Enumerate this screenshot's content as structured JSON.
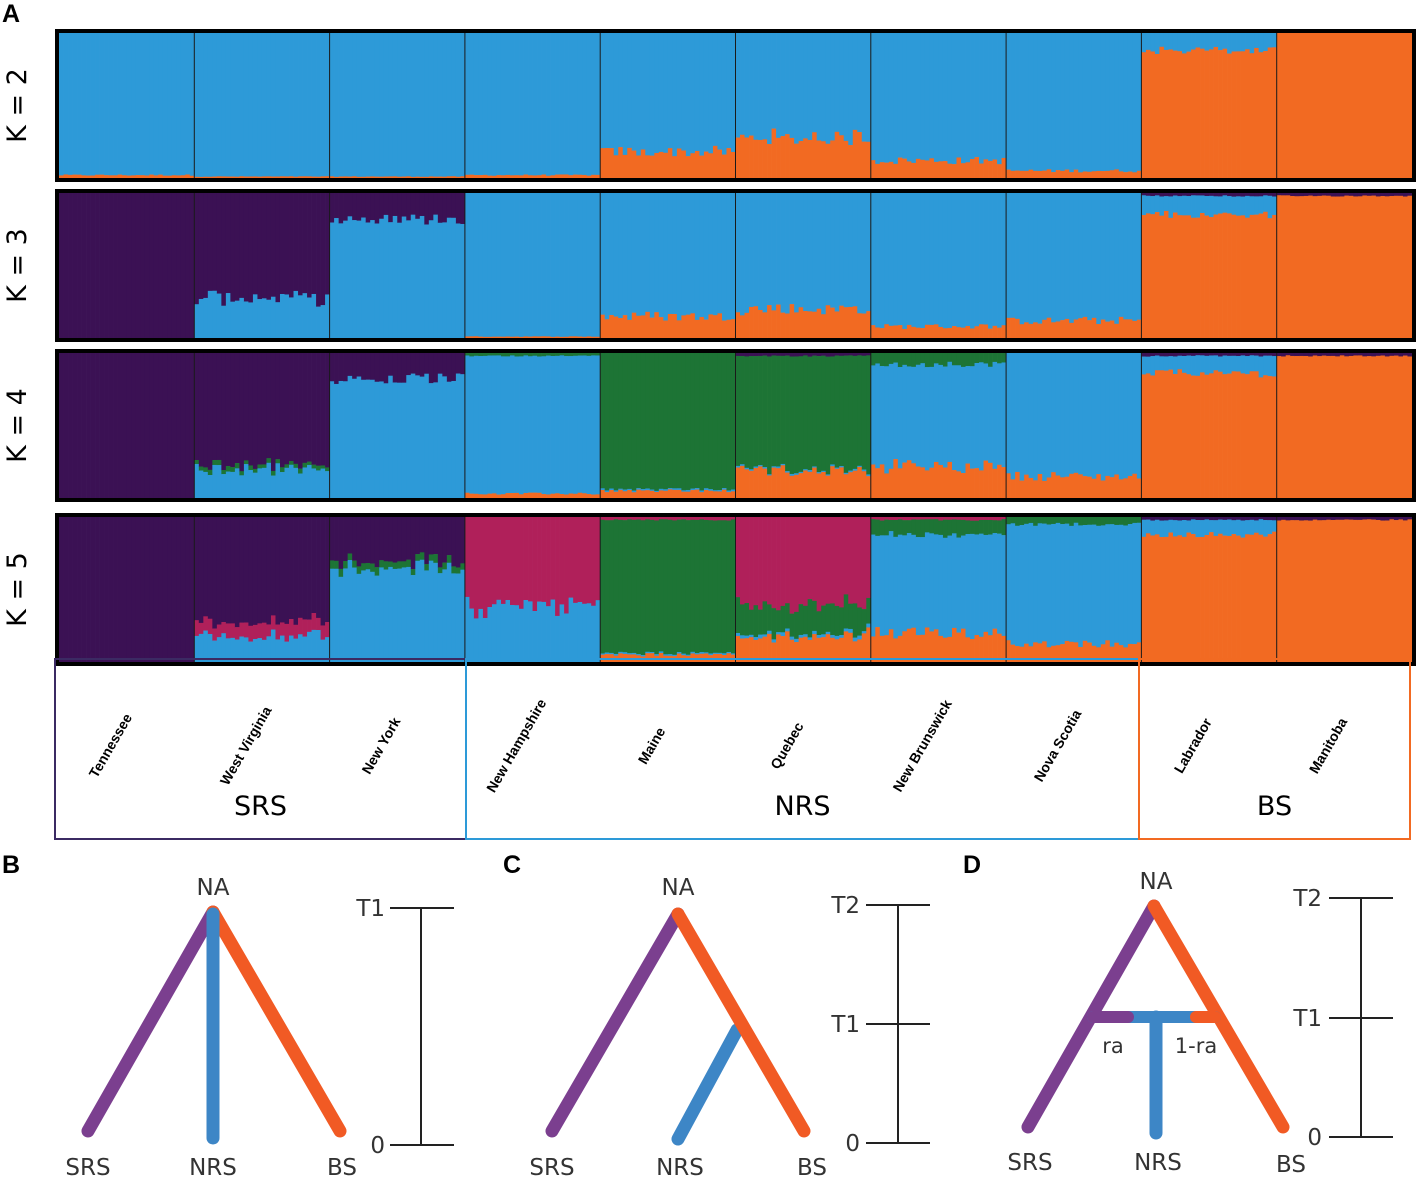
{
  "colors": {
    "purple": "#3b1154",
    "blue": "#2d9ad8",
    "orange": "#f26a22",
    "green": "#1d7435",
    "pink": "#b0205a",
    "tree_purple": "#7b3f8f",
    "tree_blue": "#3d86c6",
    "tree_orange": "#f15a24",
    "box_srs": "#3b2a63",
    "box_nrs": "#2d9ad8",
    "box_bs": "#f26a22"
  },
  "chart_data": [
    {
      "type": "bar",
      "subtype": "stacked-admixture",
      "panel": "A",
      "title": "",
      "ylim": [
        0,
        1
      ],
      "categories": [
        "Tennessee",
        "West Virginia",
        "New York",
        "New Hampshire",
        "Maine",
        "Quebec",
        "New Brunswick",
        "Nova Scotia",
        "Labrador",
        "Manitoba"
      ],
      "groups": [
        {
          "name": "SRS",
          "populations": [
            "Tennessee",
            "West Virginia",
            "New York"
          ],
          "color": "box_srs"
        },
        {
          "name": "NRS",
          "populations": [
            "New Hampshire",
            "Maine",
            "Quebec",
            "New Brunswick",
            "Nova Scotia"
          ],
          "color": "box_nrs"
        },
        {
          "name": "BS",
          "populations": [
            "Labrador",
            "Manitoba"
          ],
          "color": "box_bs"
        }
      ],
      "rows": [
        {
          "label": "K = 2",
          "clusters": [
            "blue",
            "orange"
          ],
          "proportions": [
            [
              0.98,
              0.02
            ],
            [
              0.99,
              0.01
            ],
            [
              0.99,
              0.01
            ],
            [
              0.98,
              0.02
            ],
            [
              0.82,
              0.18
            ],
            [
              0.72,
              0.28
            ],
            [
              0.88,
              0.12
            ],
            [
              0.95,
              0.05
            ],
            [
              0.12,
              0.88
            ],
            [
              0.0,
              1.0
            ]
          ]
        },
        {
          "label": "K = 3",
          "clusters": [
            "purple",
            "blue",
            "orange"
          ],
          "proportions": [
            [
              1.0,
              0.0,
              0.0
            ],
            [
              0.72,
              0.28,
              0.0
            ],
            [
              0.18,
              0.82,
              0.0
            ],
            [
              0.0,
              0.99,
              0.01
            ],
            [
              0.0,
              0.85,
              0.15
            ],
            [
              0.0,
              0.8,
              0.2
            ],
            [
              0.0,
              0.92,
              0.08
            ],
            [
              0.0,
              0.88,
              0.12
            ],
            [
              0.02,
              0.13,
              0.85
            ],
            [
              0.02,
              0.0,
              0.98
            ]
          ]
        },
        {
          "label": "K = 4",
          "clusters": [
            "purple",
            "green",
            "blue",
            "orange"
          ],
          "proportions": [
            [
              1.0,
              0.0,
              0.0,
              0.0
            ],
            [
              0.77,
              0.03,
              0.2,
              0.0
            ],
            [
              0.18,
              0.0,
              0.82,
              0.0
            ],
            [
              0.0,
              0.02,
              0.95,
              0.03
            ],
            [
              0.0,
              0.94,
              0.01,
              0.05
            ],
            [
              0.02,
              0.78,
              0.01,
              0.19
            ],
            [
              0.0,
              0.08,
              0.7,
              0.22
            ],
            [
              0.0,
              0.0,
              0.85,
              0.15
            ],
            [
              0.02,
              0.0,
              0.12,
              0.86
            ],
            [
              0.02,
              0.0,
              0.0,
              0.98
            ]
          ]
        },
        {
          "label": "K = 5",
          "clusters": [
            "purple",
            "pink",
            "green",
            "blue",
            "orange"
          ],
          "proportions": [
            [
              1.0,
              0.0,
              0.0,
              0.0,
              0.0
            ],
            [
              0.72,
              0.1,
              0.0,
              0.18,
              0.0
            ],
            [
              0.3,
              0.0,
              0.05,
              0.65,
              0.0
            ],
            [
              0.0,
              0.62,
              0.0,
              0.38,
              0.0
            ],
            [
              0.0,
              0.02,
              0.92,
              0.01,
              0.05
            ],
            [
              0.0,
              0.6,
              0.2,
              0.02,
              0.18
            ],
            [
              0.0,
              0.02,
              0.1,
              0.68,
              0.2
            ],
            [
              0.0,
              0.0,
              0.05,
              0.82,
              0.13
            ],
            [
              0.02,
              0.0,
              0.0,
              0.1,
              0.88
            ],
            [
              0.02,
              0.0,
              0.0,
              0.0,
              0.98
            ]
          ]
        }
      ]
    },
    {
      "type": "diagram",
      "subtype": "demographic-tree",
      "panel": "B",
      "model": "simultaneous split",
      "root": "NA",
      "leaves": [
        "SRS",
        "NRS",
        "BS"
      ],
      "time_axis": {
        "ticks": [
          "T1",
          "0"
        ],
        "values": [
          1,
          0
        ]
      },
      "splits": [
        {
          "parent": "NA",
          "children": [
            "SRS",
            "NRS",
            "BS"
          ],
          "time": "T1"
        }
      ]
    },
    {
      "type": "diagram",
      "subtype": "demographic-tree",
      "panel": "C",
      "model": "NRS derived from BS lineage",
      "root": "NA",
      "leaves": [
        "SRS",
        "NRS",
        "BS"
      ],
      "time_axis": {
        "ticks": [
          "T2",
          "T1",
          "0"
        ],
        "values": [
          2,
          1,
          0
        ]
      },
      "splits": [
        {
          "parent": "NA",
          "children": [
            "SRS",
            "BS"
          ],
          "time": "T2"
        },
        {
          "parent": "BS",
          "children": [
            "NRS"
          ],
          "time": "T1"
        }
      ]
    },
    {
      "type": "diagram",
      "subtype": "demographic-tree",
      "panel": "D",
      "model": "NRS of hybrid origin",
      "root": "NA",
      "leaves": [
        "SRS",
        "NRS",
        "BS"
      ],
      "time_axis": {
        "ticks": [
          "T2",
          "T1",
          "0"
        ],
        "values": [
          2,
          1,
          0
        ]
      },
      "admixture": {
        "left_fraction": "ra",
        "right_fraction": "1-ra"
      },
      "splits": [
        {
          "parent": "NA",
          "children": [
            "SRS",
            "BS"
          ],
          "time": "T2"
        },
        {
          "parent": "SRS+BS",
          "children": [
            "NRS"
          ],
          "time": "T1"
        }
      ]
    }
  ],
  "panel_letters": {
    "a": "A",
    "b": "B",
    "c": "C",
    "d": "D"
  }
}
